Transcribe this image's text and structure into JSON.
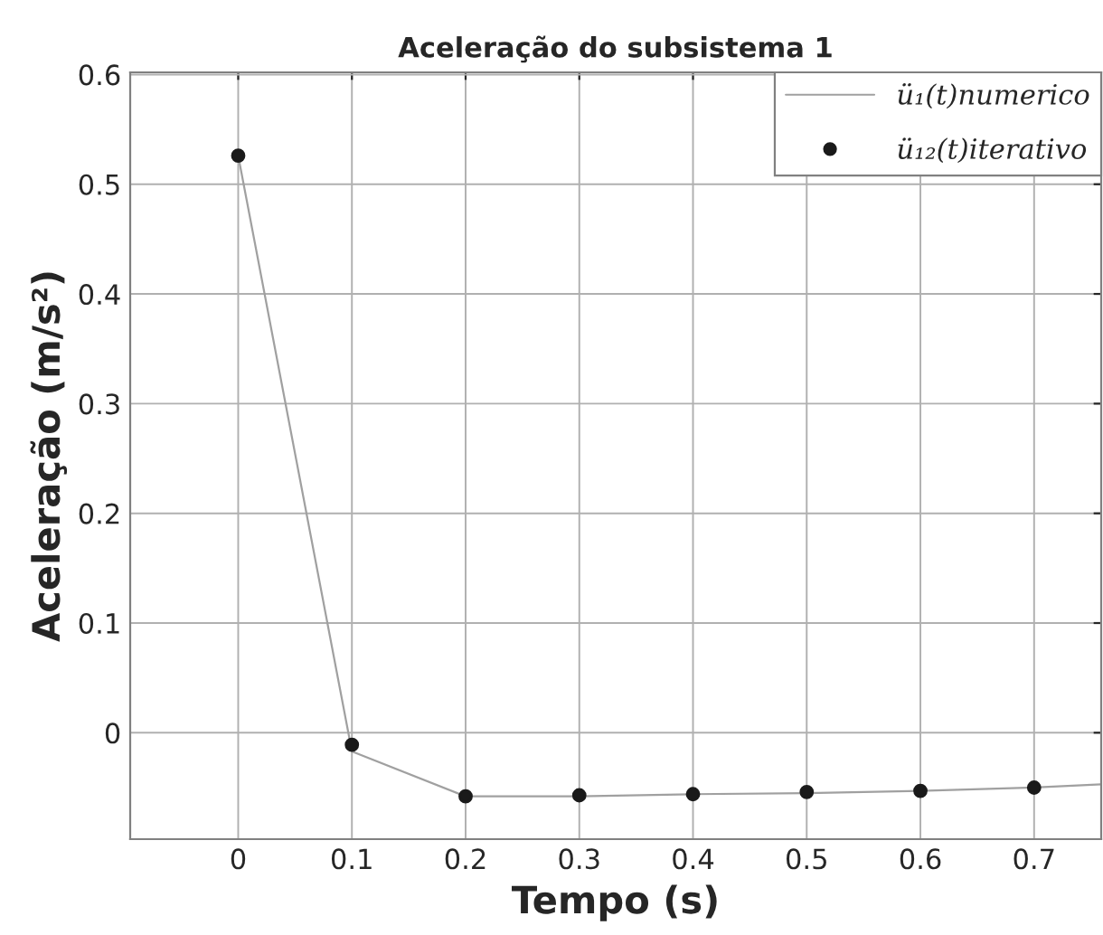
{
  "chart_data": {
    "type": "line",
    "title": "Aceleração do subsistema 1",
    "xlabel": "Tempo (s)",
    "ylabel": "Aceleração (m/s²)",
    "series": [
      {
        "name": "ü₁(t)numerico",
        "color": "#a0a0a0",
        "marker": "none",
        "x": [
          0,
          0.1,
          0.2,
          0.3,
          0.4,
          0.5,
          0.6,
          0.7,
          0.759
        ],
        "values": [
          0.526,
          -0.017,
          -0.058,
          -0.058,
          -0.056,
          -0.055,
          -0.053,
          -0.05,
          -0.047
        ]
      },
      {
        "name": "ü₁₂(t)iterativo",
        "type": "scatter",
        "color": "#1a1a1a",
        "marker": "circle",
        "x": [
          0,
          0.1,
          0.2,
          0.3,
          0.4,
          0.5,
          0.6,
          0.7
        ],
        "values": [
          0.526,
          -0.011,
          -0.058,
          -0.057,
          -0.056,
          -0.054,
          -0.053,
          -0.05
        ]
      }
    ],
    "xlim": [
      -0.095,
      0.759
    ],
    "ylim": [
      -0.097,
      0.602
    ],
    "xticks": [
      0,
      0.1,
      0.2,
      0.3,
      0.4,
      0.5,
      0.6,
      0.7
    ],
    "yticks": [
      0,
      0.1,
      0.2,
      0.3,
      0.4,
      0.5,
      0.6
    ],
    "grid": true,
    "legend": "top right"
  }
}
